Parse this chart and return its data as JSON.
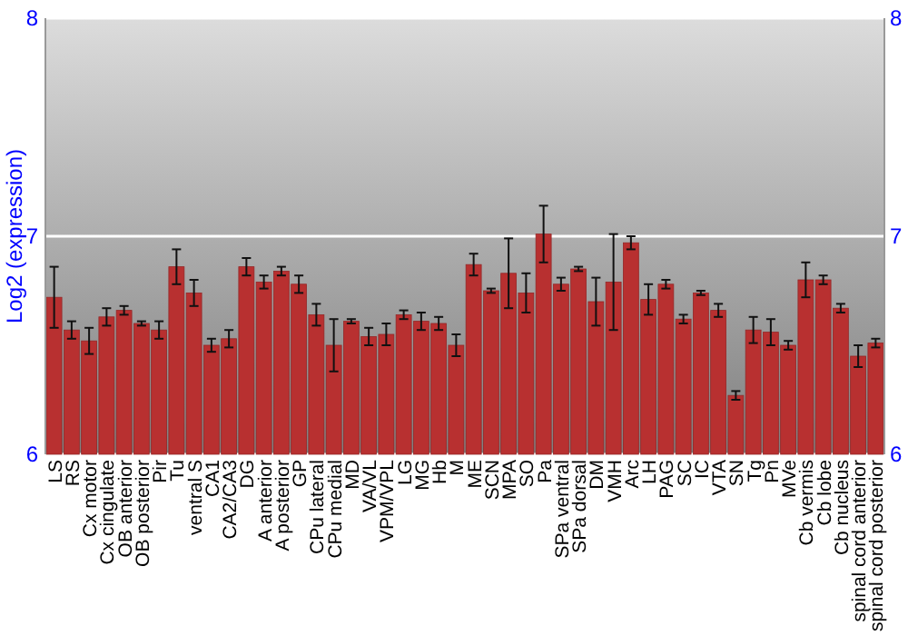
{
  "chart_data": {
    "type": "bar",
    "ylabel": "Log2 (expression)",
    "categories": [
      "LS",
      "RS",
      "Cx motor",
      "Cx cingulate",
      "OB anterior",
      "OB posterior",
      "Pir",
      "Tu",
      "ventral S",
      "CA1",
      "CA2/CA3",
      "DG",
      "A anterior",
      "A posterior",
      "GP",
      "CPu lateral",
      "CPu medial",
      "MD",
      "VA/VL",
      "VPM/VPL",
      "LG",
      "MG",
      "Hb",
      "M",
      "ME",
      "SCN",
      "MPA",
      "SO",
      "Pa",
      "SPa ventral",
      "SPa dorsal",
      "DM",
      "VMH",
      "Arc",
      "LH",
      "PAG",
      "SC",
      "IC",
      "VTA",
      "SN",
      "Tg",
      "Pn",
      "MVe",
      "Cb vermis",
      "Cb lobe",
      "Cb nucleus",
      "spinal cord anterior",
      "spinal cord posterior"
    ],
    "values": [
      6.72,
      6.57,
      6.52,
      6.63,
      6.66,
      6.6,
      6.57,
      6.86,
      6.74,
      6.5,
      6.53,
      6.86,
      6.79,
      6.84,
      6.78,
      6.64,
      6.5,
      6.61,
      6.54,
      6.55,
      6.64,
      6.61,
      6.6,
      6.5,
      6.87,
      6.75,
      6.83,
      6.74,
      7.01,
      6.78,
      6.85,
      6.7,
      6.79,
      6.97,
      6.71,
      6.78,
      6.62,
      6.74,
      6.66,
      6.27,
      6.57,
      6.56,
      6.5,
      6.8,
      6.8,
      6.67,
      6.45,
      6.51
    ],
    "errors": [
      0.14,
      0.04,
      0.06,
      0.04,
      0.02,
      0.01,
      0.04,
      0.08,
      0.06,
      0.03,
      0.04,
      0.04,
      0.03,
      0.02,
      0.04,
      0.05,
      0.12,
      0.01,
      0.04,
      0.05,
      0.02,
      0.04,
      0.03,
      0.05,
      0.05,
      0.01,
      0.16,
      0.09,
      0.13,
      0.03,
      0.01,
      0.11,
      0.22,
      0.03,
      0.07,
      0.02,
      0.02,
      0.01,
      0.03,
      0.02,
      0.06,
      0.06,
      0.02,
      0.08,
      0.02,
      0.02,
      0.05,
      0.02
    ],
    "color": "#b83030",
    "ylim": [
      6,
      8
    ],
    "yticks": [
      6,
      7,
      8
    ],
    "y2lim": [
      6,
      8
    ],
    "y2ticks": [
      6,
      7,
      8
    ],
    "grid": "y"
  }
}
